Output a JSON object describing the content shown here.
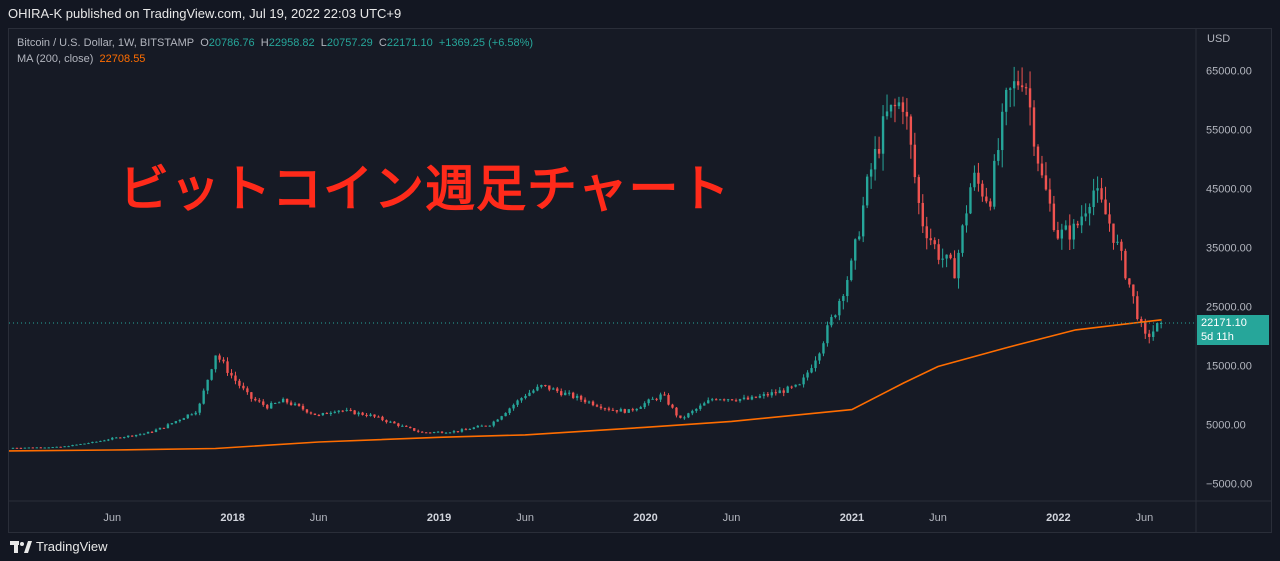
{
  "header": {
    "published": "OHIRA-K published on TradingView.com, Jul 19, 2022 22:03 UTC+9"
  },
  "legend": {
    "symbol": "Bitcoin / U.S. Dollar, 1W, BITSTAMP",
    "o_label": "O",
    "o_value": "20786.76",
    "h_label": "H",
    "h_value": "22958.82",
    "l_label": "L",
    "l_value": "20757.29",
    "c_label": "C",
    "c_value": "22171.10",
    "change": "+1369.25 (+6.58%)",
    "ma_label": "MA (200, close)",
    "ma_value": "22708.55"
  },
  "overlay_title": "ビットコイン週足チャート",
  "price_tag": {
    "price": "22171.10",
    "countdown": "5d 11h"
  },
  "footer": {
    "brand": "TradingView"
  },
  "colors": {
    "up": "#26a69a",
    "down": "#ef5350",
    "ma": "#ff6d00",
    "overlay": "#ff2a1a"
  },
  "chart_data": {
    "type": "candlestick",
    "interval": "1W",
    "currency_label": "USD",
    "y_ticks": [
      "65000.00",
      "55000.00",
      "45000.00",
      "35000.00",
      "25000.00",
      "15000.00",
      "5000.00",
      "−5000.00"
    ],
    "y_tick_values": [
      65000,
      55000,
      45000,
      35000,
      25000,
      15000,
      5000,
      -5000
    ],
    "x_ticks": [
      "Jun",
      "2018",
      "Jun",
      "2019",
      "Jun",
      "2020",
      "Jun",
      "2021",
      "Jun",
      "2022",
      "Jun"
    ],
    "x_tick_dates": [
      "2017-06",
      "2018-01",
      "2018-06",
      "2019-01",
      "2019-06",
      "2020-01",
      "2020-06",
      "2021-01",
      "2021-06",
      "2022-01",
      "2022-06"
    ],
    "ylim": [
      -8000,
      72000
    ],
    "xlim": [
      "2016-12",
      "2022-09"
    ],
    "last_close": 22171.1,
    "ma_period": 200,
    "price_path": [
      [
        "2016-12",
        1000
      ],
      [
        "2017-03",
        1150
      ],
      [
        "2017-05",
        2000
      ],
      [
        "2017-06",
        2600
      ],
      [
        "2017-08",
        3500
      ],
      [
        "2017-09",
        4500
      ],
      [
        "2017-11",
        7500
      ],
      [
        "2017-12",
        17000
      ],
      [
        "2018-01",
        13000
      ],
      [
        "2018-02",
        9500
      ],
      [
        "2018-03",
        8000
      ],
      [
        "2018-04",
        9000
      ],
      [
        "2018-06",
        6400
      ],
      [
        "2018-07",
        7500
      ],
      [
        "2018-09",
        6500
      ],
      [
        "2018-11",
        4500
      ],
      [
        "2018-12",
        3600
      ],
      [
        "2019-02",
        3800
      ],
      [
        "2019-04",
        5000
      ],
      [
        "2019-06",
        10000
      ],
      [
        "2019-07",
        11500
      ],
      [
        "2019-09",
        9500
      ],
      [
        "2019-11",
        7500
      ],
      [
        "2019-12",
        7200
      ],
      [
        "2020-02",
        10000
      ],
      [
        "2020-03",
        5800
      ],
      [
        "2020-05",
        9500
      ],
      [
        "2020-07",
        9200
      ],
      [
        "2020-09",
        10700
      ],
      [
        "2020-10",
        11500
      ],
      [
        "2020-11",
        17000
      ],
      [
        "2020-12",
        24000
      ],
      [
        "2021-01",
        32000
      ],
      [
        "2021-02",
        47000
      ],
      [
        "2021-03",
        57000
      ],
      [
        "2021-04",
        60000
      ],
      [
        "2021-05",
        40000
      ],
      [
        "2021-06",
        34000
      ],
      [
        "2021-07",
        31000
      ],
      [
        "2021-08",
        47000
      ],
      [
        "2021-09",
        43000
      ],
      [
        "2021-10",
        60000
      ],
      [
        "2021-11",
        65000
      ],
      [
        "2021-12",
        47000
      ],
      [
        "2022-01",
        37000
      ],
      [
        "2022-02",
        38000
      ],
      [
        "2022-03",
        45000
      ],
      [
        "2022-04",
        39000
      ],
      [
        "2022-05",
        30000
      ],
      [
        "2022-06",
        19500
      ],
      [
        "2022-07",
        22171
      ]
    ],
    "ma_path": [
      [
        "2016-12",
        500
      ],
      [
        "2017-06",
        650
      ],
      [
        "2017-12",
        900
      ],
      [
        "2018-06",
        2000
      ],
      [
        "2019-01",
        2800
      ],
      [
        "2019-06",
        3200
      ],
      [
        "2020-01",
        4500
      ],
      [
        "2020-06",
        5500
      ],
      [
        "2021-01",
        7500
      ],
      [
        "2021-04",
        12000
      ],
      [
        "2021-06",
        14800
      ],
      [
        "2021-10",
        18000
      ],
      [
        "2022-02",
        21000
      ],
      [
        "2022-07",
        22708
      ]
    ]
  }
}
